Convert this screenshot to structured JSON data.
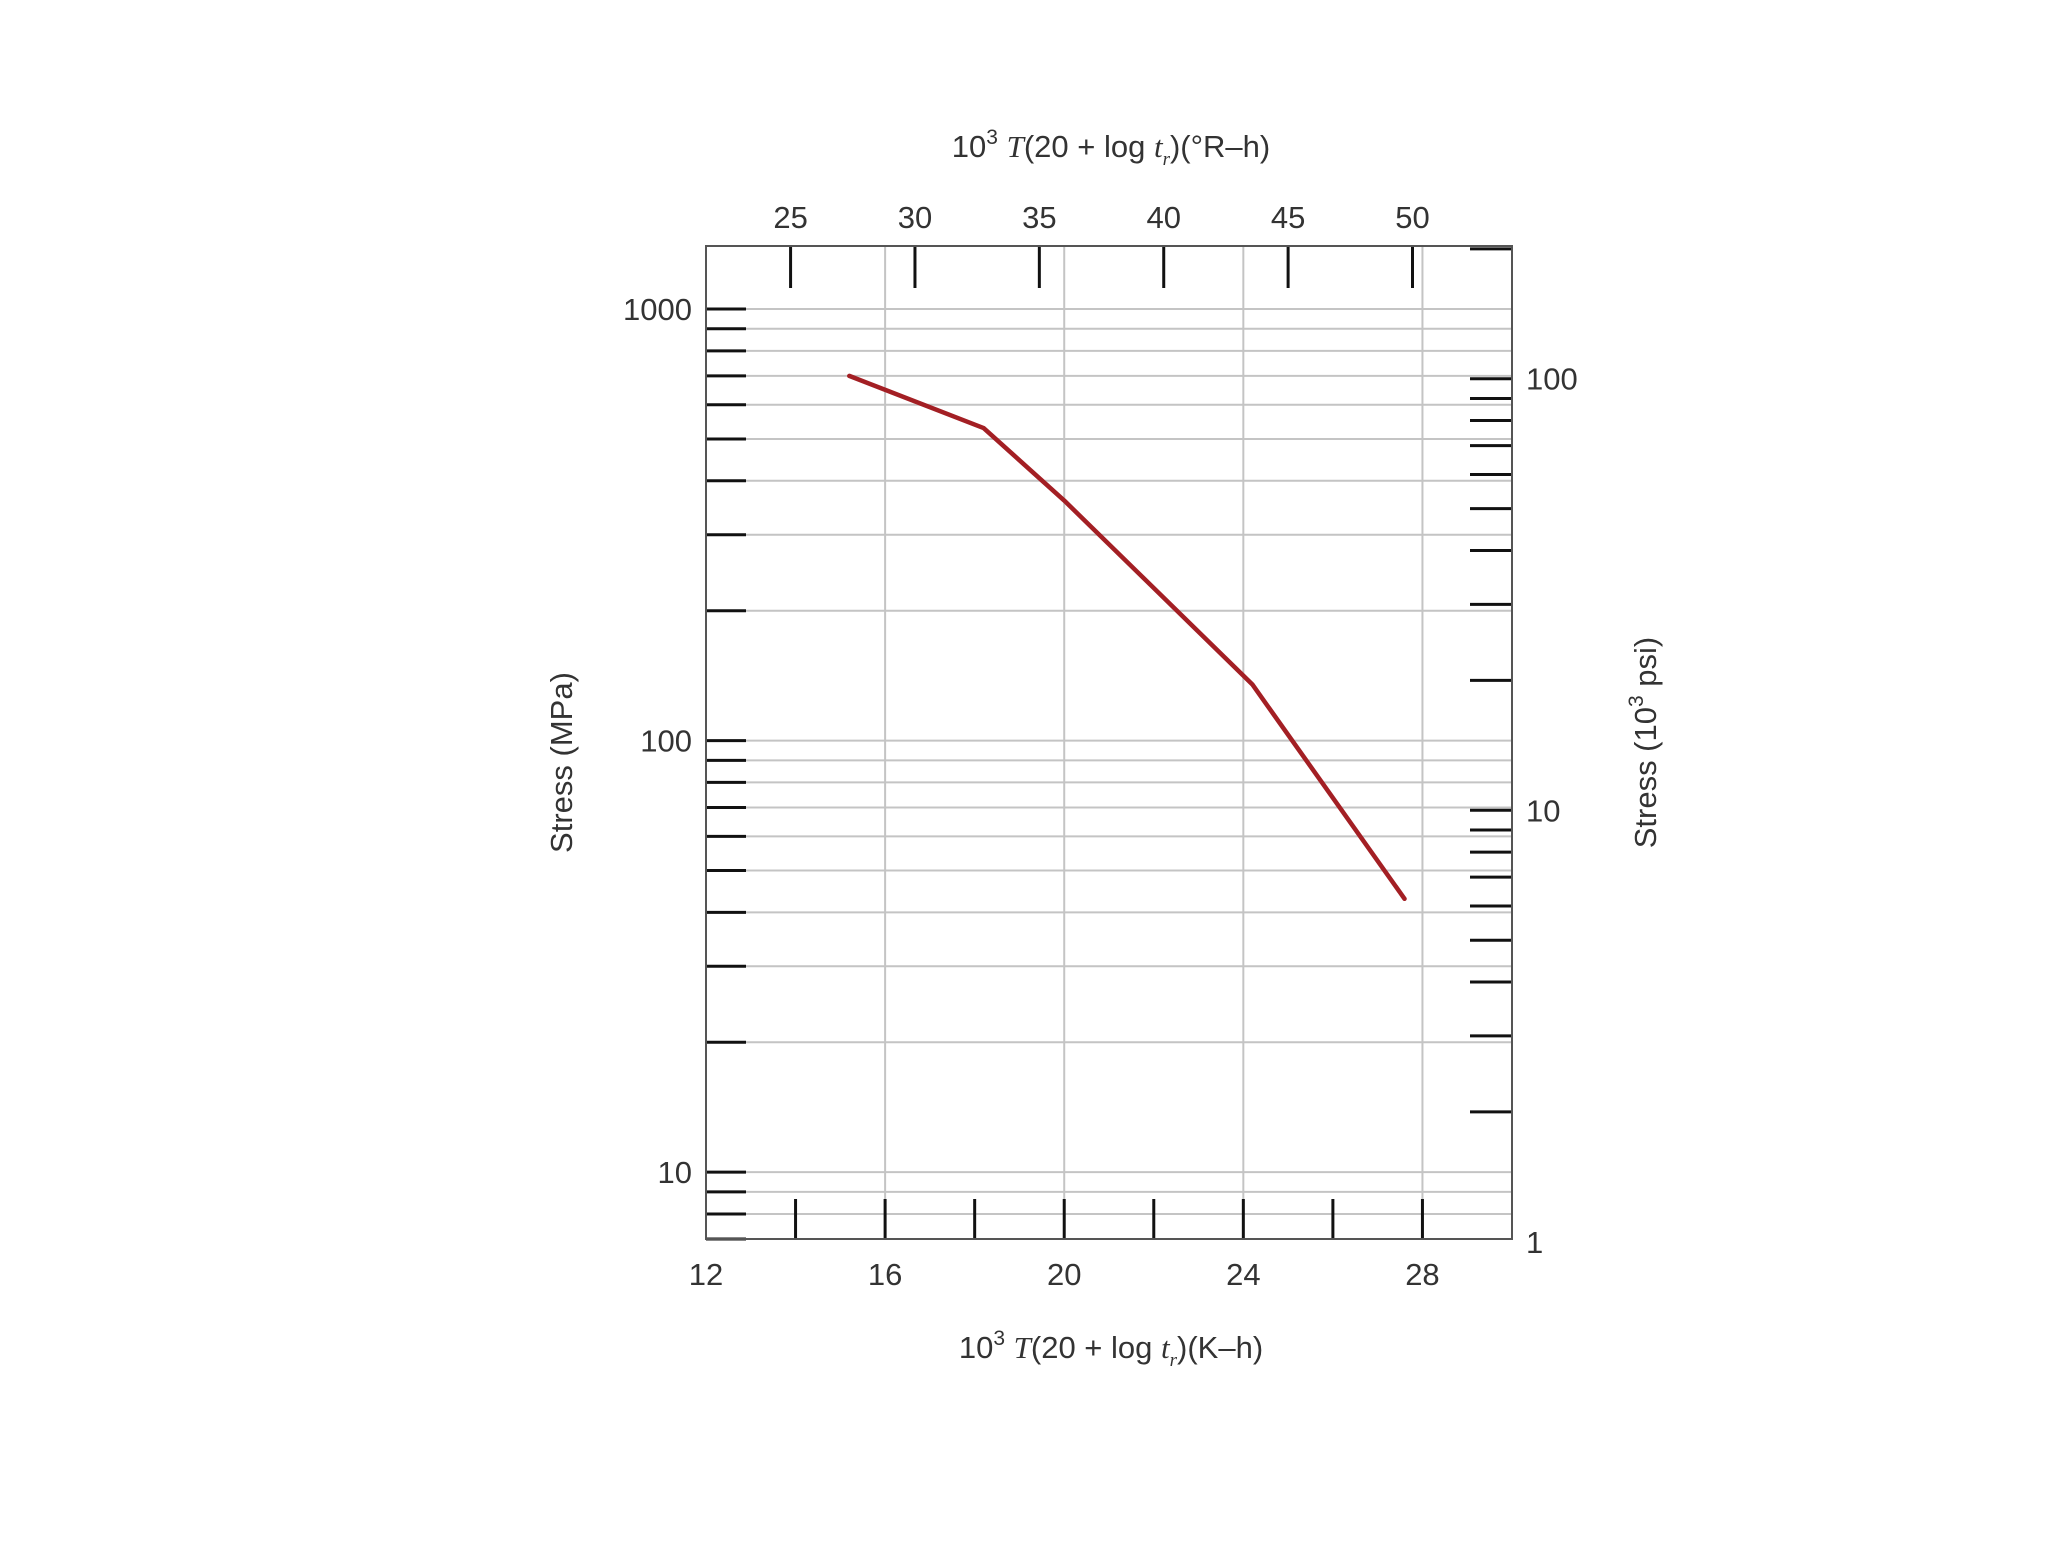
{
  "chart_data": {
    "type": "line",
    "x_bottom": {
      "label_parts": [
        "10",
        "3",
        " ",
        "T",
        "(20 + log ",
        "t",
        "r",
        ")(K–h)"
      ],
      "range": [
        12,
        30
      ],
      "ticks": [
        12,
        16,
        20,
        24,
        28
      ],
      "tick_labels": [
        "12",
        "16",
        "20",
        "24",
        "28"
      ],
      "minor_ticks": [
        14,
        16,
        18,
        20,
        22,
        24,
        26,
        28
      ]
    },
    "x_top": {
      "label_parts": [
        "10",
        "3",
        " ",
        "T",
        "(20 + log ",
        "t",
        "r",
        ")(°R–h)"
      ],
      "ticks": [
        25,
        30,
        35,
        40,
        45,
        50
      ],
      "tick_labels": [
        "25",
        "30",
        "35",
        "40",
        "45",
        "50"
      ],
      "rankine_per_kelvin": 1.8
    },
    "y_left": {
      "label": "Stress (MPa)",
      "scale": "log",
      "range": [
        7,
        1400
      ],
      "ticks": [
        10,
        100,
        1000
      ],
      "tick_labels": [
        "10",
        "100",
        "1000"
      ]
    },
    "y_right": {
      "label_parts": [
        "Stress (10",
        "3",
        " psi)"
      ],
      "scale": "log",
      "mpa_per_ksi": 6.895,
      "ticks": [
        1,
        10,
        100
      ],
      "tick_labels": [
        "1",
        "10",
        "100"
      ]
    },
    "grid": true,
    "series": [
      {
        "color": "#a31f24",
        "x": [
          15.2,
          18.2,
          20.0,
          24.2,
          27.6
        ],
        "y": [
          700,
          530,
          360,
          135,
          43
        ]
      }
    ]
  }
}
